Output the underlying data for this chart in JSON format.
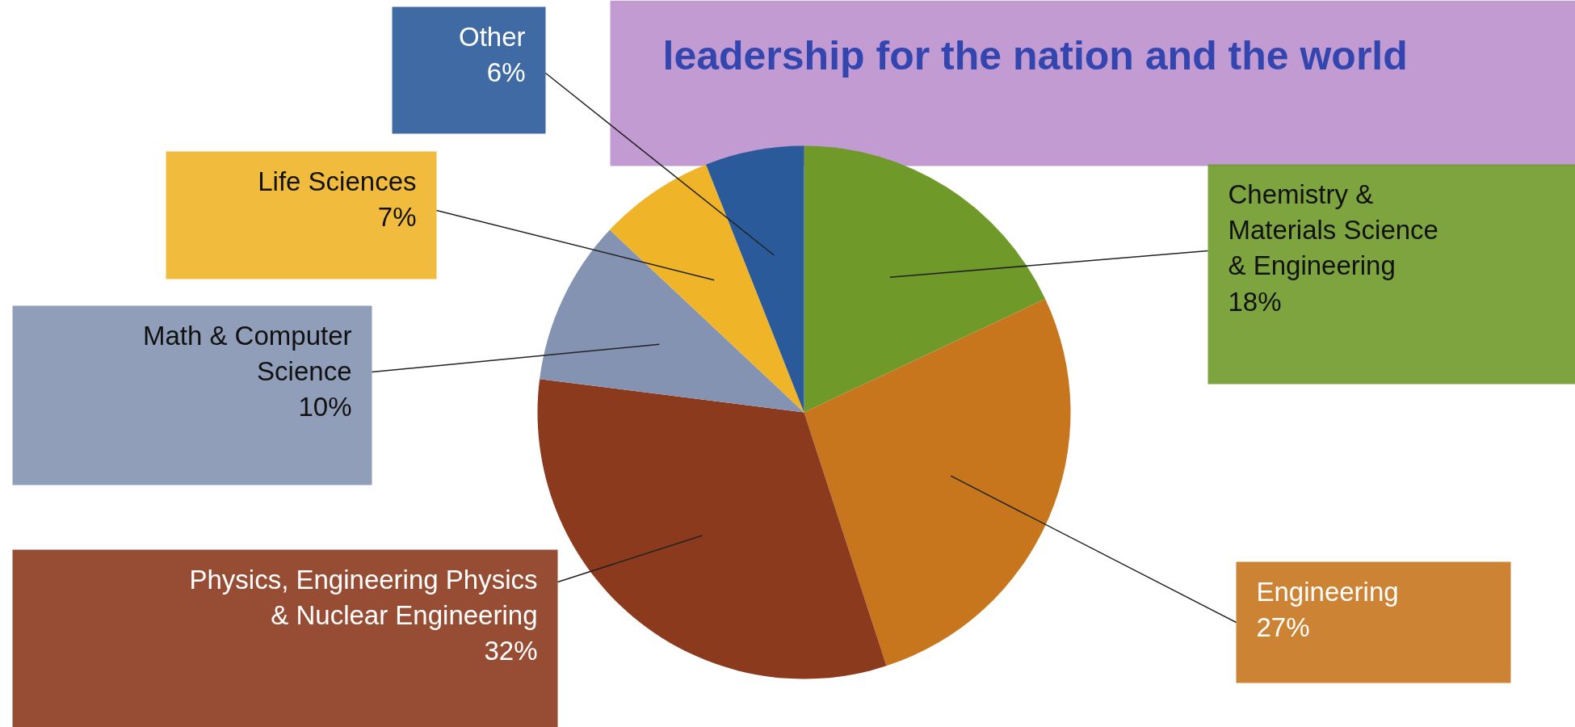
{
  "chart_data": {
    "type": "pie",
    "title": "leadership for the nation and the world",
    "categories": [
      "Chemistry &\nMaterials Science\n& Engineering",
      "Engineering",
      "Physics, Engineering Physics\n& Nuclear Engineering",
      "Math & Computer\nScience",
      "Life Sciences",
      "Other"
    ],
    "values": [
      18,
      27,
      32,
      10,
      7,
      6
    ],
    "value_labels": [
      "18%",
      "27%",
      "32%",
      "10%",
      "7%",
      "6%"
    ],
    "colors": [
      "#6f9a2a",
      "#c8761e",
      "#8b3a1e",
      "#8593b3",
      "#f0b429",
      "#2a5a9a"
    ]
  }
}
